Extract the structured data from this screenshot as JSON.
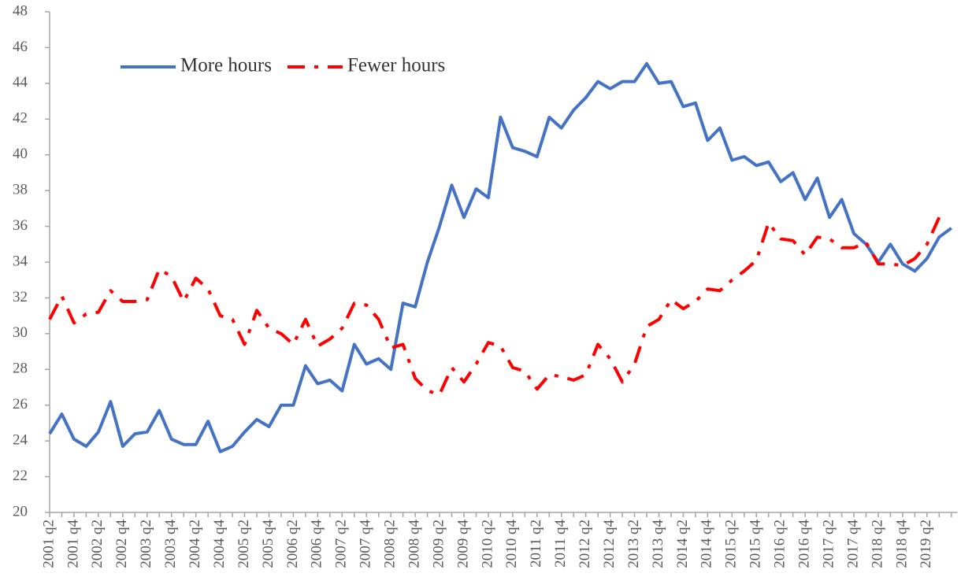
{
  "chart_data": {
    "type": "line",
    "categories": [
      "2001 q2",
      null,
      "2001 q4",
      null,
      "2002 q2",
      null,
      "2002 q4",
      null,
      "2003 q2",
      null,
      "2003 q4",
      null,
      "2004 q2",
      null,
      "2004 q4",
      null,
      "2005 q2",
      null,
      "2005 q4",
      null,
      "2006 q2",
      null,
      "2006 q4",
      null,
      "2007 q2",
      null,
      "2007 q4",
      null,
      "2008 q2",
      null,
      "2008 q4",
      null,
      "2009 q2",
      null,
      "2009 q4",
      null,
      "2010 q2",
      null,
      "2010 q4",
      null,
      "2011 q2",
      null,
      "2011 q4",
      null,
      "2012 q2",
      null,
      "2012 q4",
      null,
      "2013 q2",
      null,
      "2013 q4",
      null,
      "2014 q2",
      null,
      "2014 q4",
      null,
      "2015 q2",
      null,
      "2015 q4",
      null,
      "2016 q2",
      null,
      "2016 q4",
      null,
      "2017 q2",
      null,
      "2017 q4",
      null,
      "2018 q2",
      null,
      "2018 q4",
      null,
      "2019 q2",
      null,
      null
    ],
    "series": [
      {
        "name": "More hours",
        "color": "#4472c4",
        "dash": "solid",
        "values": [
          24.4,
          25.5,
          24.1,
          23.7,
          24.5,
          26.2,
          23.7,
          24.4,
          24.5,
          25.7,
          24.1,
          23.8,
          23.8,
          25.1,
          23.4,
          23.7,
          24.5,
          25.2,
          24.8,
          26.0,
          26.0,
          28.2,
          27.2,
          27.4,
          26.8,
          29.4,
          28.3,
          28.6,
          28.0,
          31.7,
          31.5,
          34.0,
          36.0,
          38.3,
          36.5,
          38.1,
          37.6,
          42.1,
          40.4,
          40.2,
          39.9,
          42.1,
          41.5,
          42.5,
          43.2,
          44.1,
          43.7,
          44.1,
          44.1,
          45.1,
          44.0,
          44.1,
          42.7,
          42.9,
          40.8,
          41.5,
          39.7,
          39.9,
          39.4,
          39.6,
          38.5,
          39.0,
          37.5,
          38.7,
          36.5,
          37.5,
          35.6,
          35.0,
          34.0,
          35.0,
          33.9,
          33.5,
          34.2,
          35.4,
          35.9
        ]
      },
      {
        "name": "Fewer hours",
        "color": "#ff0000",
        "dash": "dash-dot",
        "values": [
          30.8,
          32.1,
          30.6,
          31.1,
          31.2,
          32.4,
          31.8,
          31.8,
          31.9,
          33.6,
          33.2,
          31.8,
          33.1,
          32.5,
          31.0,
          30.8,
          29.4,
          31.3,
          30.3,
          30.0,
          29.4,
          30.8,
          29.3,
          29.7,
          30.3,
          31.7,
          31.6,
          30.8,
          29.2,
          29.4,
          27.5,
          26.8,
          26.6,
          28.1,
          27.3,
          28.3,
          29.5,
          29.3,
          28.1,
          27.9,
          26.9,
          27.7,
          27.6,
          27.4,
          27.7,
          29.4,
          28.6,
          27.3,
          28.3,
          30.4,
          30.8,
          31.9,
          31.4,
          31.8,
          32.5,
          32.4,
          33.0,
          33.5,
          34.1,
          36.2,
          35.3,
          35.2,
          34.4,
          35.4,
          35.3,
          34.8,
          34.8,
          35.1,
          33.9,
          33.9,
          33.8,
          34.2,
          35.0,
          36.5,
          null
        ]
      }
    ],
    "ylim": [
      20,
      48
    ],
    "yticks": [
      20,
      22,
      24,
      26,
      28,
      30,
      32,
      34,
      36,
      38,
      40,
      42,
      44,
      46,
      48
    ],
    "grid": false,
    "legend": "upper left"
  }
}
